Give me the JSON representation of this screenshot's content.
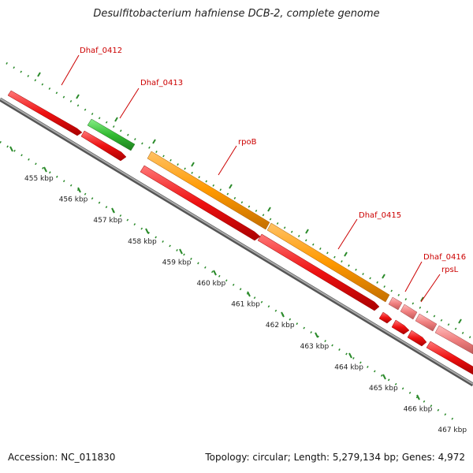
{
  "title": "Desulfitobacterium hafniense DCB-2, complete genome",
  "footer": {
    "accession": "Accession: NC_011830",
    "summary": "Topology: circular; Length: 5,279,134 bp; Genes: 4,972"
  },
  "colors": {
    "backbone": "#888888",
    "tick": "#2a8a2a",
    "label": "#cc0000",
    "kbp_label": "#222222"
  },
  "kbp_labels": [
    "455 kbp",
    "456 kbp",
    "457 kbp",
    "458 kbp",
    "459 kbp",
    "460 kbp",
    "461 kbp",
    "462 kbp",
    "463 kbp",
    "464 kbp",
    "465 kbp",
    "466 kbp",
    "467 kbp"
  ],
  "features": [
    {
      "name": "Dhaf_0412",
      "color": "#ee1111",
      "labeled": true
    },
    {
      "name": "Dhaf_0413",
      "color": "#33bb33",
      "labeled": true
    },
    {
      "name": "rpoB",
      "color": "#ff9900",
      "labeled": true
    },
    {
      "name": "Dhaf_0415",
      "color": "#ff9900",
      "labeled": true
    },
    {
      "name": "Dhaf_0416",
      "color": "#f08080",
      "labeled": true
    },
    {
      "name": "rpsL",
      "color": "#f08080",
      "labeled": true
    }
  ]
}
